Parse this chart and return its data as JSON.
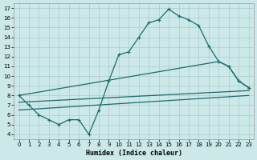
{
  "xlabel": "Humidex (Indice chaleur)",
  "bg_color": "#cce8e8",
  "grid_color": "#aacccc",
  "line_color": "#1a6b6b",
  "xlim": [
    -0.5,
    23.5
  ],
  "ylim": [
    3.5,
    17.5
  ],
  "xticks": [
    0,
    1,
    2,
    3,
    4,
    5,
    6,
    7,
    8,
    9,
    10,
    11,
    12,
    13,
    14,
    15,
    16,
    17,
    18,
    19,
    20,
    21,
    22,
    23
  ],
  "yticks": [
    4,
    5,
    6,
    7,
    8,
    9,
    10,
    11,
    12,
    13,
    14,
    15,
    16,
    17
  ],
  "zigzag_x": [
    0,
    1,
    2,
    3,
    4,
    5,
    6,
    7,
    8,
    9,
    10,
    11,
    12,
    13,
    14,
    15,
    16,
    17,
    18,
    19,
    20,
    21,
    22,
    23
  ],
  "zigzag_y": [
    8.0,
    7.0,
    6.0,
    5.5,
    5.0,
    5.5,
    5.5,
    4.0,
    6.5,
    9.5,
    12.2,
    12.5,
    14.0,
    15.5,
    15.8,
    16.9,
    16.2,
    15.8,
    15.2,
    13.1,
    11.5,
    11.0,
    9.5,
    8.8
  ],
  "line3_x": [
    0,
    20,
    21,
    22,
    23
  ],
  "line3_y": [
    8.0,
    11.5,
    11.0,
    9.5,
    8.8
  ],
  "line4_x": [
    0,
    23
  ],
  "line4_y": [
    7.3,
    8.5
  ],
  "line5_x": [
    0,
    23
  ],
  "line5_y": [
    6.5,
    8.0
  ]
}
